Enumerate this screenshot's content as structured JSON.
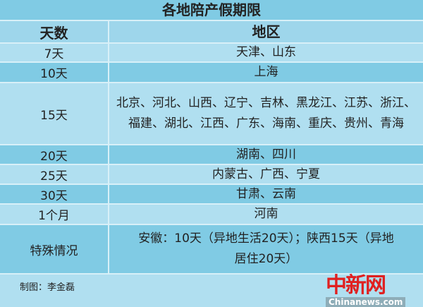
{
  "title": "各地陪产假期限",
  "headers": {
    "days": "天数",
    "regions": "地区"
  },
  "rows": [
    {
      "days": "7天",
      "regions": "天津、山东"
    },
    {
      "days": "10天",
      "regions": "上海"
    },
    {
      "days": "15天",
      "regions": "北京、河北、山西、辽宁、吉林、黑龙江、江苏、浙江、福建、湖北、江西、广东、海南、重庆、贵州、青海"
    },
    {
      "days": "20天",
      "regions": "湖南、四川"
    },
    {
      "days": "25天",
      "regions": "内蒙古、广西、宁夏"
    },
    {
      "days": "30天",
      "regions": "甘肃、云南"
    },
    {
      "days": "1个月",
      "regions": "河南"
    },
    {
      "days": "特殊情况",
      "regions": "安徽：10天（异地生活20天）；陕西15天（异地居住20天）"
    }
  ],
  "credit": "制图：李金磊",
  "watermark": {
    "logo": "中新网",
    "site": "Chinanews.com"
  },
  "colors": {
    "row_dark": "#80cbe4",
    "row_light": "#b0dff0",
    "logo": "#e02020"
  }
}
